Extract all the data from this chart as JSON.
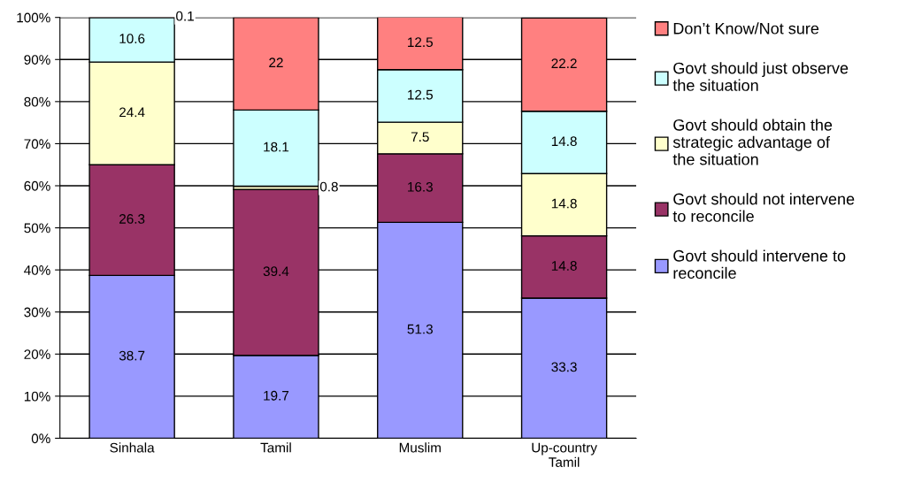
{
  "chart_data": {
    "type": "bar",
    "stacked": true,
    "categories": [
      "Sinhala",
      "Tamil",
      "Muslim",
      "Up-country\nTamil"
    ],
    "series": [
      {
        "name": "Govt should intervene to\nreconcile",
        "color": "#9999ff",
        "values": [
          38.7,
          19.7,
          51.3,
          33.3
        ]
      },
      {
        "name": "Govt should not intervene\nto reconcile",
        "color": "#993366",
        "values": [
          26.3,
          39.4,
          16.3,
          14.8
        ]
      },
      {
        "name": "Govt should obtain the\nstrategic advantage of\nthe situation",
        "color": "#ffffcc",
        "values": [
          24.4,
          0.8,
          7.5,
          14.8
        ]
      },
      {
        "name": "Govt should just observe\nthe situation",
        "color": "#ccffff",
        "values": [
          10.6,
          18.1,
          12.5,
          14.8
        ]
      },
      {
        "name": "Don’t Know/Not sure",
        "color": "#ff8080",
        "values": [
          0.1,
          22,
          12.5,
          22.2
        ]
      }
    ],
    "ylim": [
      0,
      100
    ],
    "yticks": [
      {
        "value": 0,
        "label": "0%"
      },
      {
        "value": 10,
        "label": "10%"
      },
      {
        "value": 20,
        "label": "20%"
      },
      {
        "value": 30,
        "label": "30%"
      },
      {
        "value": 40,
        "label": "40%"
      },
      {
        "value": 50,
        "label": "50%"
      },
      {
        "value": 60,
        "label": "60%"
      },
      {
        "value": 70,
        "label": "70%"
      },
      {
        "value": 80,
        "label": "80%"
      },
      {
        "value": 90,
        "label": "90%"
      },
      {
        "value": 100,
        "label": "100%"
      }
    ],
    "grid": "y",
    "legend": "right",
    "data_labels": true
  }
}
